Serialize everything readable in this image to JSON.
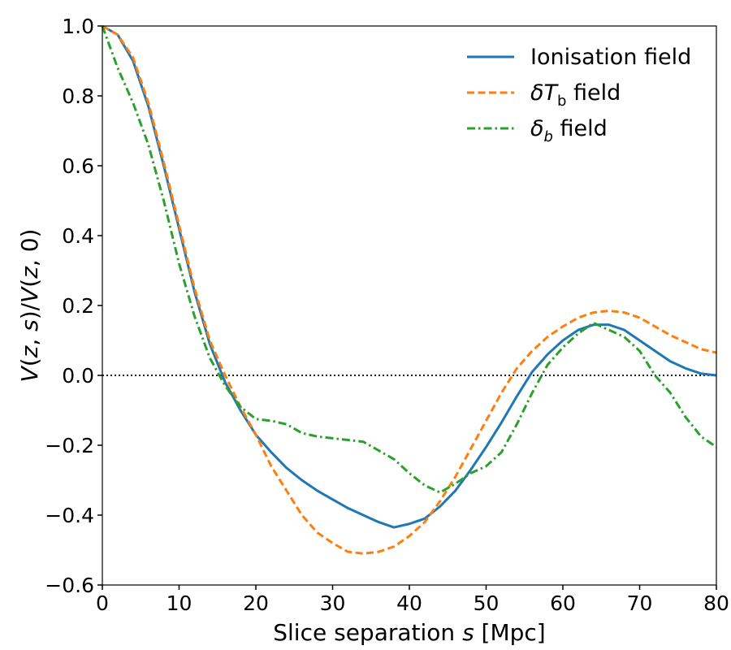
{
  "chart_data": {
    "type": "line",
    "xlabel": "Slice separation s [Mpc]",
    "ylabel": "V(z, s)/V(z, 0)",
    "xlim": [
      0,
      80
    ],
    "ylim": [
      -0.6,
      1.0
    ],
    "xticks": [
      0,
      10,
      20,
      30,
      40,
      50,
      60,
      70,
      80
    ],
    "yticks": [
      -0.6,
      -0.4,
      -0.2,
      0.0,
      0.2,
      0.4,
      0.6,
      0.8,
      1.0
    ],
    "ytick_labels": [
      "−0.6",
      "−0.4",
      "−0.2",
      "0.0",
      "0.2",
      "0.4",
      "0.6",
      "0.8",
      "1.0"
    ],
    "grid": false,
    "legend_position": "top-right",
    "reference_line": {
      "y": 0.0,
      "style": "dotted",
      "color": "#000000"
    },
    "series": [
      {
        "name": "Ionisation field",
        "color": "#1f77b4",
        "style": "solid",
        "points": [
          [
            0,
            1.0
          ],
          [
            2,
            0.975
          ],
          [
            4,
            0.9
          ],
          [
            6,
            0.77
          ],
          [
            8,
            0.6
          ],
          [
            10,
            0.42
          ],
          [
            12,
            0.24
          ],
          [
            14,
            0.09
          ],
          [
            16,
            -0.02
          ],
          [
            18,
            -0.1
          ],
          [
            20,
            -0.17
          ],
          [
            22,
            -0.22
          ],
          [
            24,
            -0.265
          ],
          [
            26,
            -0.3
          ],
          [
            28,
            -0.33
          ],
          [
            30,
            -0.355
          ],
          [
            32,
            -0.38
          ],
          [
            34,
            -0.4
          ],
          [
            36,
            -0.42
          ],
          [
            38,
            -0.435
          ],
          [
            40,
            -0.425
          ],
          [
            42,
            -0.41
          ],
          [
            44,
            -0.375
          ],
          [
            46,
            -0.33
          ],
          [
            48,
            -0.27
          ],
          [
            50,
            -0.205
          ],
          [
            52,
            -0.135
          ],
          [
            54,
            -0.06
          ],
          [
            56,
            0.01
          ],
          [
            58,
            0.06
          ],
          [
            60,
            0.1
          ],
          [
            62,
            0.13
          ],
          [
            64,
            0.145
          ],
          [
            66,
            0.145
          ],
          [
            68,
            0.13
          ],
          [
            70,
            0.1
          ],
          [
            72,
            0.07
          ],
          [
            74,
            0.04
          ],
          [
            76,
            0.02
          ],
          [
            78,
            0.005
          ],
          [
            80,
            0.0
          ]
        ]
      },
      {
        "name": "δT_b field",
        "color": "#ff7f0e",
        "style": "dashed",
        "points": [
          [
            0,
            1.0
          ],
          [
            2,
            0.975
          ],
          [
            4,
            0.91
          ],
          [
            6,
            0.78
          ],
          [
            8,
            0.61
          ],
          [
            10,
            0.43
          ],
          [
            12,
            0.25
          ],
          [
            14,
            0.1
          ],
          [
            16,
            0.0
          ],
          [
            18,
            -0.09
          ],
          [
            20,
            -0.17
          ],
          [
            22,
            -0.26
          ],
          [
            24,
            -0.33
          ],
          [
            26,
            -0.4
          ],
          [
            28,
            -0.45
          ],
          [
            30,
            -0.48
          ],
          [
            32,
            -0.505
          ],
          [
            34,
            -0.51
          ],
          [
            36,
            -0.505
          ],
          [
            38,
            -0.49
          ],
          [
            40,
            -0.46
          ],
          [
            42,
            -0.42
          ],
          [
            44,
            -0.36
          ],
          [
            46,
            -0.29
          ],
          [
            48,
            -0.21
          ],
          [
            50,
            -0.13
          ],
          [
            52,
            -0.05
          ],
          [
            54,
            0.02
          ],
          [
            56,
            0.07
          ],
          [
            58,
            0.11
          ],
          [
            60,
            0.14
          ],
          [
            62,
            0.165
          ],
          [
            64,
            0.18
          ],
          [
            66,
            0.185
          ],
          [
            68,
            0.18
          ],
          [
            70,
            0.165
          ],
          [
            72,
            0.14
          ],
          [
            74,
            0.115
          ],
          [
            76,
            0.095
          ],
          [
            78,
            0.075
          ],
          [
            80,
            0.065
          ]
        ]
      },
      {
        "name": "δ_b field",
        "color": "#2ca02c",
        "style": "dashdot",
        "points": [
          [
            0,
            1.0
          ],
          [
            2,
            0.88
          ],
          [
            4,
            0.78
          ],
          [
            6,
            0.66
          ],
          [
            8,
            0.5
          ],
          [
            10,
            0.32
          ],
          [
            12,
            0.17
          ],
          [
            14,
            0.05
          ],
          [
            16,
            -0.03
          ],
          [
            18,
            -0.09
          ],
          [
            20,
            -0.125
          ],
          [
            22,
            -0.13
          ],
          [
            24,
            -0.14
          ],
          [
            26,
            -0.165
          ],
          [
            28,
            -0.175
          ],
          [
            30,
            -0.18
          ],
          [
            32,
            -0.185
          ],
          [
            34,
            -0.19
          ],
          [
            36,
            -0.215
          ],
          [
            38,
            -0.24
          ],
          [
            40,
            -0.28
          ],
          [
            42,
            -0.315
          ],
          [
            44,
            -0.335
          ],
          [
            46,
            -0.31
          ],
          [
            48,
            -0.28
          ],
          [
            50,
            -0.26
          ],
          [
            52,
            -0.22
          ],
          [
            54,
            -0.14
          ],
          [
            56,
            -0.05
          ],
          [
            58,
            0.03
          ],
          [
            60,
            0.08
          ],
          [
            62,
            0.12
          ],
          [
            64,
            0.15
          ],
          [
            66,
            0.13
          ],
          [
            68,
            0.11
          ],
          [
            70,
            0.07
          ],
          [
            72,
            0.0
          ],
          [
            74,
            -0.05
          ],
          [
            76,
            -0.12
          ],
          [
            78,
            -0.175
          ],
          [
            80,
            -0.205
          ]
        ]
      }
    ]
  }
}
